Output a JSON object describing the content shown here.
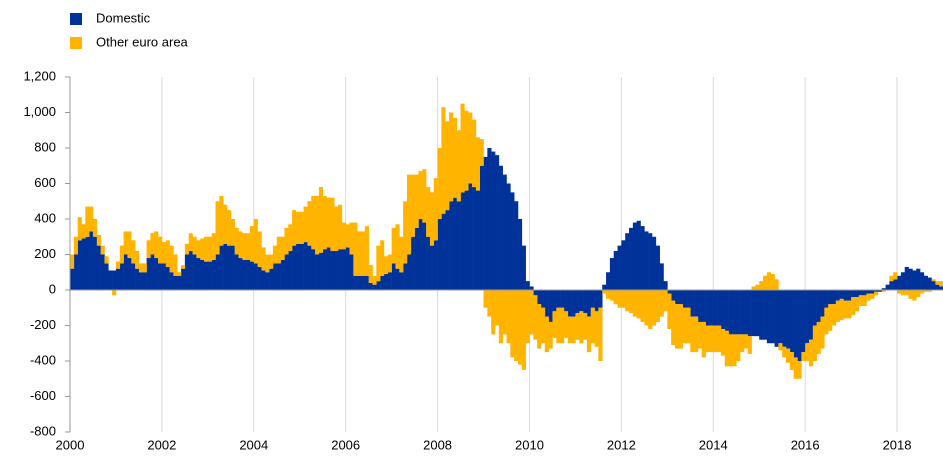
{
  "chart_data": {
    "type": "stacked-bar",
    "categories": [
      "2000",
      null,
      null,
      null,
      null,
      null,
      null,
      null,
      null,
      null,
      null,
      null,
      null,
      null,
      null,
      null,
      null,
      null,
      null,
      null,
      null,
      null,
      null,
      null,
      "2002",
      null,
      null,
      null,
      null,
      null,
      null,
      null,
      null,
      null,
      null,
      null,
      null,
      null,
      null,
      null,
      null,
      null,
      null,
      null,
      null,
      null,
      null,
      null,
      "2004",
      null,
      null,
      null,
      null,
      null,
      null,
      null,
      null,
      null,
      null,
      null,
      null,
      null,
      null,
      null,
      null,
      null,
      null,
      null,
      null,
      null,
      null,
      null,
      "2006",
      null,
      null,
      null,
      null,
      null,
      null,
      null,
      null,
      null,
      null,
      null,
      null,
      null,
      null,
      null,
      null,
      null,
      null,
      null,
      null,
      null,
      null,
      null,
      "2008",
      null,
      null,
      null,
      null,
      null,
      null,
      null,
      null,
      null,
      null,
      null,
      null,
      null,
      null,
      null,
      null,
      null,
      null,
      null,
      null,
      null,
      null,
      null,
      "2010",
      null,
      null,
      null,
      null,
      null,
      null,
      null,
      null,
      null,
      null,
      null,
      null,
      null,
      null,
      null,
      null,
      null,
      null,
      null,
      null,
      null,
      null,
      null,
      "2012",
      null,
      null,
      null,
      null,
      null,
      null,
      null,
      null,
      null,
      null,
      null,
      null,
      null,
      null,
      null,
      null,
      null,
      null,
      null,
      null,
      null,
      null,
      null,
      "2014",
      null,
      null,
      null,
      null,
      null,
      null,
      null,
      null,
      null,
      null,
      null,
      null,
      null,
      null,
      null,
      null,
      null,
      null,
      null,
      null,
      null,
      null,
      null,
      "2016",
      null,
      null,
      null,
      null,
      null,
      null,
      null,
      null,
      null,
      null,
      null,
      null,
      null,
      null,
      null,
      null,
      null,
      null,
      null,
      null,
      null,
      null,
      null,
      "2018",
      null,
      null,
      null,
      null,
      null,
      null,
      null,
      null,
      null,
      null,
      null
    ],
    "series": [
      {
        "name": "Domestic",
        "color": "#003299",
        "values": [
          120,
          200,
          280,
          290,
          300,
          330,
          300,
          250,
          200,
          150,
          110,
          110,
          120,
          150,
          200,
          180,
          150,
          120,
          100,
          100,
          180,
          200,
          180,
          150,
          150,
          130,
          100,
          80,
          80,
          120,
          200,
          220,
          200,
          180,
          170,
          160,
          160,
          170,
          200,
          250,
          260,
          250,
          250,
          200,
          180,
          170,
          170,
          160,
          150,
          130,
          110,
          100,
          120,
          150,
          150,
          170,
          200,
          220,
          250,
          260,
          260,
          270,
          250,
          230,
          200,
          210,
          230,
          240,
          220,
          220,
          230,
          230,
          240,
          200,
          80,
          80,
          80,
          80,
          40,
          30,
          50,
          80,
          90,
          100,
          150,
          120,
          100,
          150,
          200,
          300,
          350,
          400,
          380,
          300,
          250,
          280,
          400,
          430,
          450,
          500,
          520,
          500,
          550,
          560,
          600,
          580,
          560,
          700,
          750,
          800,
          780,
          760,
          700,
          650,
          600,
          550,
          500,
          400,
          250,
          50,
          20,
          -30,
          -80,
          -100,
          -150,
          -180,
          -120,
          -100,
          -100,
          -120,
          -150,
          -150,
          -130,
          -120,
          -130,
          -150,
          -100,
          -120,
          -100,
          30,
          100,
          180,
          220,
          250,
          280,
          320,
          350,
          380,
          390,
          360,
          330,
          320,
          300,
          250,
          150,
          50,
          -20,
          -60,
          -80,
          -80,
          -100,
          -100,
          -150,
          -150,
          -180,
          -180,
          -200,
          -200,
          -200,
          -200,
          -220,
          -230,
          -250,
          -250,
          -250,
          -250,
          -250,
          -260,
          -260,
          -260,
          -280,
          -280,
          -300,
          -300,
          -320,
          -300,
          -320,
          -330,
          -350,
          -380,
          -400,
          -350,
          -300,
          -280,
          -200,
          -180,
          -150,
          -100,
          -80,
          -80,
          -60,
          -50,
          -60,
          -60,
          -40,
          -40,
          -30,
          -30,
          -20,
          -20,
          -10,
          -10,
          10,
          30,
          50,
          60,
          80,
          100,
          130,
          120,
          110,
          120,
          100,
          80,
          70,
          50,
          30,
          20
        ]
      },
      {
        "name": "Other euro area",
        "color": "#ffb400",
        "values": [
          80,
          100,
          130,
          80,
          170,
          140,
          100,
          60,
          50,
          40,
          0,
          -30,
          40,
          100,
          130,
          150,
          130,
          100,
          50,
          50,
          100,
          120,
          150,
          150,
          120,
          150,
          150,
          120,
          20,
          20,
          60,
          100,
          100,
          100,
          120,
          140,
          140,
          150,
          300,
          280,
          220,
          200,
          150,
          150,
          150,
          150,
          150,
          200,
          250,
          200,
          130,
          100,
          80,
          100,
          150,
          130,
          150,
          150,
          200,
          180,
          180,
          200,
          250,
          300,
          330,
          370,
          300,
          280,
          300,
          250,
          250,
          150,
          130,
          180,
          300,
          250,
          250,
          280,
          100,
          50,
          200,
          200,
          100,
          100,
          200,
          250,
          200,
          350,
          450,
          350,
          300,
          270,
          300,
          280,
          300,
          350,
          400,
          600,
          500,
          500,
          450,
          400,
          500,
          450,
          400,
          380,
          300,
          150,
          -100,
          -150,
          -250,
          -200,
          -300,
          -250,
          -300,
          -380,
          -400,
          -420,
          -450,
          -300,
          -250,
          -250,
          -250,
          -200,
          -200,
          -150,
          -150,
          -200,
          -200,
          -150,
          -150,
          -150,
          -150,
          -180,
          -150,
          -200,
          -200,
          -200,
          -300,
          -20,
          -50,
          -60,
          -80,
          -100,
          -100,
          -120,
          -130,
          -150,
          -160,
          -180,
          -200,
          -220,
          -200,
          -180,
          -150,
          -120,
          -200,
          -250,
          -250,
          -250,
          -200,
          -200,
          -200,
          -200,
          -150,
          -200,
          -150,
          -150,
          -150,
          -150,
          -150,
          -200,
          -180,
          -180,
          -150,
          -100,
          -80,
          -100,
          20,
          30,
          50,
          80,
          100,
          90,
          60,
          -40,
          -60,
          -80,
          -100,
          -120,
          -100,
          -50,
          -100,
          -150,
          -200,
          -180,
          -180,
          -150,
          -150,
          -120,
          -120,
          -120,
          -100,
          -100,
          -100,
          -80,
          -60,
          -60,
          -40,
          -30,
          -20,
          0,
          -10,
          0,
          30,
          40,
          -20,
          -30,
          -30,
          -50,
          -60,
          -40,
          -20,
          -10,
          -10,
          10,
          20,
          30
        ]
      }
    ],
    "ylim": [
      -800,
      1200
    ],
    "yticks": [
      -800,
      -600,
      -400,
      -200,
      0,
      200,
      400,
      600,
      800,
      {
        "value": 1000,
        "label": "1,000"
      },
      {
        "value": 1200,
        "label": "1,200"
      }
    ],
    "legend": "top-left",
    "grid": "x"
  }
}
